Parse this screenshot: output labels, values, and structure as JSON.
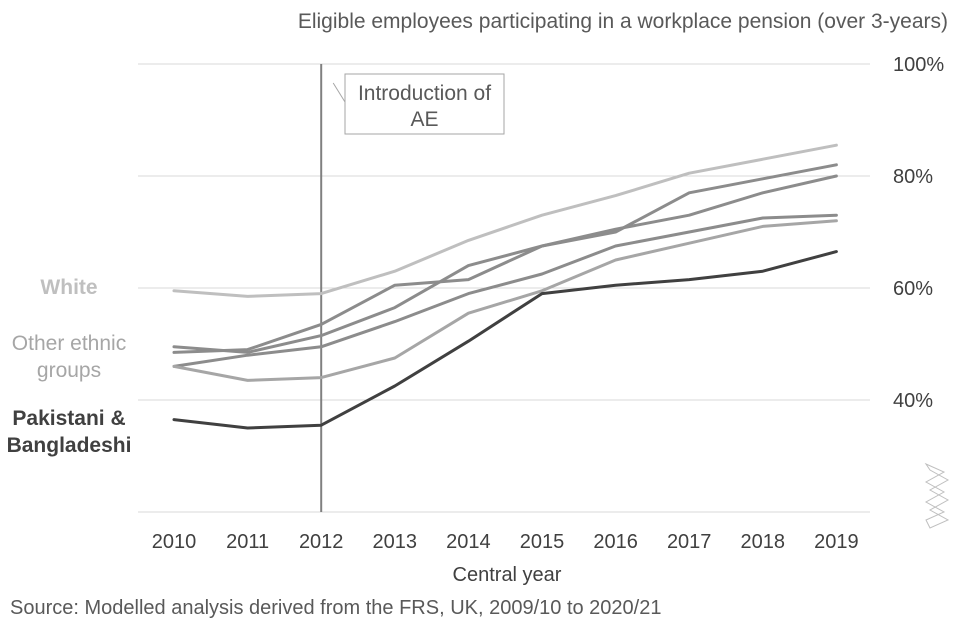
{
  "chart_data": {
    "type": "line",
    "title": "Eligible employees participating in a workplace pension (over 3-years)",
    "xlabel": "Central year",
    "ylabel": "",
    "x": [
      2010,
      2011,
      2012,
      2013,
      2014,
      2015,
      2016,
      2017,
      2018,
      2019
    ],
    "ylim": [
      20,
      100
    ],
    "y_ticks": [
      "40%",
      "60%",
      "80%",
      "100%"
    ],
    "y_tick_values": [
      40,
      60,
      80,
      100
    ],
    "y_axis_side": "right",
    "y_axis_break": true,
    "grid": true,
    "series": [
      {
        "name": "White",
        "label_visible": true,
        "color": "#bfbfbf",
        "values": [
          59.5,
          58.5,
          59,
          63,
          68.5,
          73,
          76.5,
          80.5,
          83,
          85.5
        ]
      },
      {
        "name": "",
        "label_visible": false,
        "color": "#8c8c8c",
        "values": [
          48.5,
          49,
          53.5,
          60.5,
          61.5,
          67.5,
          70,
          77,
          79.5,
          82
        ]
      },
      {
        "name": "",
        "label_visible": false,
        "color": "#8c8c8c",
        "values": [
          49.5,
          48.5,
          51.5,
          56.5,
          64,
          67.5,
          70.5,
          73,
          77,
          80
        ]
      },
      {
        "name": "",
        "label_visible": false,
        "color": "#8c8c8c",
        "values": [
          46,
          48,
          49.5,
          54,
          59,
          62.5,
          67.5,
          70,
          72.5,
          73
        ]
      },
      {
        "name": "Other ethnic groups",
        "label_visible": true,
        "color": "#a6a6a6",
        "values": [
          46,
          43.5,
          44,
          47.5,
          55.5,
          59.5,
          65,
          68,
          71,
          72
        ]
      },
      {
        "name": "Pakistani & Bangladeshi",
        "label_visible": true,
        "color": "#404040",
        "values": [
          36.5,
          35,
          35.5,
          42.5,
          50.5,
          59,
          60.5,
          61.5,
          63,
          66.5
        ]
      }
    ],
    "series_labels": [
      {
        "line1": "White",
        "line2": ""
      },
      {
        "line1": "Other ethnic",
        "line2": "groups"
      },
      {
        "line1": "Pakistani &",
        "line2": "Bangladeshi"
      }
    ],
    "annotations": [
      {
        "x": 2012,
        "line1": "Introduction of",
        "line2": "AE"
      }
    ],
    "source": "Source: Modelled analysis derived from the FRS, UK, 2009/10 to 2020/21"
  }
}
